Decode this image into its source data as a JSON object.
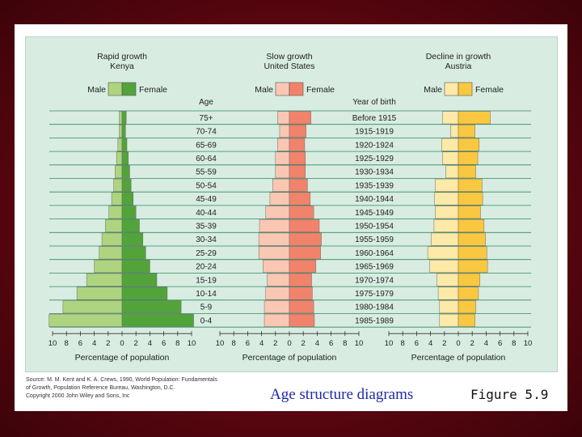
{
  "chart_data": {
    "type": "population pyramid",
    "age_header": "Age",
    "birth_header": "Year of birth",
    "age_groups": [
      "75+",
      "70-74",
      "65-69",
      "60-64",
      "55-59",
      "50-54",
      "45-49",
      "40-44",
      "35-39",
      "30-34",
      "25-29",
      "20-24",
      "15-19",
      "10-14",
      "5-9",
      "0-4"
    ],
    "birth_years": [
      "Before 1915",
      "1915-1919",
      "1920-1924",
      "1925-1929",
      "1930-1934",
      "1935-1939",
      "1940-1944",
      "1945-1949",
      "1950-1954",
      "1955-1959",
      "1960-1964",
      "1965-1969",
      "1970-1974",
      "1975-1979",
      "1980-1984",
      "1985-1989"
    ],
    "x_ticks": [
      "10",
      "8",
      "6",
      "4",
      "2",
      "0",
      "2",
      "4",
      "6",
      "8",
      "10"
    ],
    "xlim": [
      -10,
      10
    ],
    "xlabel": "Percentage of population",
    "legend_male": "Male",
    "legend_female": "Female",
    "panels": [
      {
        "title": "Rapid growth",
        "subtitle": "Kenya",
        "colors": {
          "male": "#aed47f",
          "female": "#52a43a"
        },
        "male": [
          0.4,
          0.4,
          0.6,
          0.8,
          1.0,
          1.2,
          1.5,
          1.9,
          2.4,
          2.9,
          3.3,
          4.0,
          5.1,
          6.5,
          8.5,
          10.5
        ],
        "female": [
          0.6,
          0.5,
          0.7,
          0.9,
          1.1,
          1.3,
          1.6,
          2.0,
          2.5,
          3.0,
          3.4,
          4.0,
          5.0,
          6.5,
          8.5,
          10.3
        ]
      },
      {
        "title": "Slow growth",
        "subtitle": "United States",
        "colors": {
          "male": "#f9c7b2",
          "female": "#f2836b"
        },
        "male": [
          1.7,
          1.4,
          1.7,
          2.0,
          2.0,
          2.4,
          2.8,
          3.4,
          4.3,
          4.4,
          4.4,
          3.8,
          3.2,
          3.4,
          3.6,
          3.6
        ],
        "female": [
          3.1,
          2.4,
          2.2,
          2.3,
          2.3,
          2.6,
          3.0,
          3.5,
          4.3,
          4.6,
          4.5,
          3.8,
          3.2,
          3.3,
          3.5,
          3.6
        ]
      },
      {
        "title": "Decline in growth",
        "subtitle": "Austria",
        "colors": {
          "male": "#fde9a8",
          "female": "#f9c840"
        },
        "male": [
          2.3,
          1.1,
          2.4,
          2.3,
          1.8,
          3.3,
          3.4,
          3.3,
          3.5,
          3.9,
          4.4,
          4.1,
          3.1,
          2.9,
          2.7,
          2.7
        ],
        "female": [
          4.6,
          2.4,
          3.0,
          2.8,
          2.5,
          3.4,
          3.5,
          3.2,
          3.7,
          3.9,
          4.1,
          4.2,
          3.1,
          2.9,
          2.5,
          2.4
        ]
      }
    ]
  },
  "source": {
    "line1": "Source: M. M. Kent and K. A. Crews, 1990, World Population: Fundamentals",
    "line2": "of Growth, Population Reference Bureau, Washington, D.C.",
    "line3": "Copyright 2000 John Wiley and Sons, Inc"
  },
  "caption": "Age structure diagrams",
  "figure_label": "Figure 5.9",
  "colors": {
    "panel_bg": "#d8ece1",
    "gridline": "#2f8d62",
    "caption": "#1f2aa8",
    "slide_bg": "#6e0a16"
  }
}
